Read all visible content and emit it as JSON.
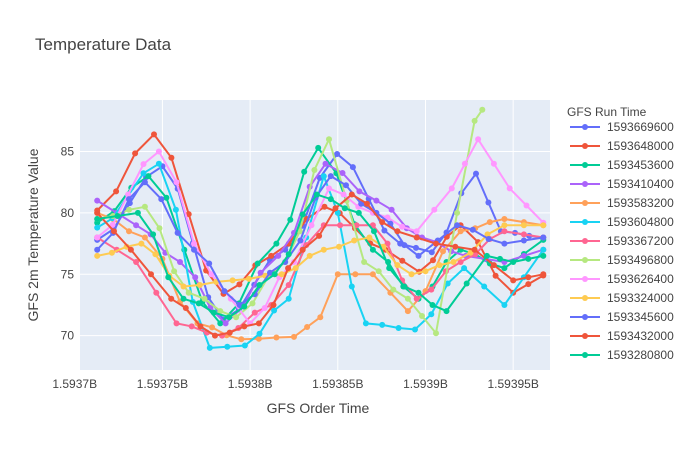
{
  "chart_data": {
    "type": "line",
    "title": "Temperature Data",
    "xlabel": "GFS Order Time",
    "ylabel": "GFS 2m Temperature Value",
    "legend_title": "GFS Run Time",
    "legend_placement": "right",
    "grid": true,
    "xlim": [
      1593703000,
      1593971000
    ],
    "ylim": [
      67.2,
      89.2
    ],
    "x_ticks": [
      1593700000,
      1593750000,
      1593800000,
      1593850000,
      1593900000,
      1593950000
    ],
    "x_tick_labels": [
      "1.5937B",
      "1.59375B",
      "1.5938B",
      "1.59385B",
      "1.5939B",
      "1.59395B"
    ],
    "y_ticks": [
      70,
      75,
      80,
      85
    ],
    "y_tick_labels": [
      "70",
      "75",
      "80",
      "85"
    ],
    "colors": {
      "plot_bg": "#e5ecf6",
      "grid": "#ffffff",
      "text": "#444444"
    },
    "series": [
      {
        "name": "1593669600",
        "color": "#636efa",
        "anchors": [
          [
            1593712800,
            77.8
          ],
          [
            1593750000,
            83.8
          ],
          [
            1593784800,
            71.3
          ],
          [
            1593820000,
            77.0
          ],
          [
            1593849600,
            84.8
          ],
          [
            1593885600,
            77.5
          ],
          [
            1593903600,
            76.8
          ],
          [
            1593928800,
            83.2
          ],
          [
            1593943000,
            78.5
          ],
          [
            1593967200,
            78.0
          ]
        ]
      },
      {
        "name": "1593648000",
        "color": "#EF553B",
        "anchors": [
          [
            1593712800,
            80.2
          ],
          [
            1593745200,
            86.4
          ],
          [
            1593784800,
            73.4
          ],
          [
            1593812000,
            76.5
          ],
          [
            1593842400,
            80.5
          ],
          [
            1593877200,
            77.0
          ],
          [
            1593896400,
            75.2
          ],
          [
            1593920000,
            79.0
          ],
          [
            1593950000,
            73.5
          ],
          [
            1593967200,
            74.9
          ]
        ]
      },
      {
        "name": "1593453600",
        "color": "#00cc96",
        "anchors": [
          [
            1593712800,
            79.2
          ],
          [
            1593742000,
            83.0
          ],
          [
            1593783000,
            71.0
          ],
          [
            1593815000,
            77.5
          ],
          [
            1593838800,
            85.3
          ],
          [
            1593870000,
            77.0
          ],
          [
            1593896000,
            73.0
          ],
          [
            1593920000,
            77.0
          ],
          [
            1593945000,
            75.5
          ],
          [
            1593967200,
            77.8
          ]
        ]
      },
      {
        "name": "1593410400",
        "color": "#ab63fa",
        "anchors": [
          [
            1593712800,
            81.0
          ],
          [
            1593735000,
            79.0
          ],
          [
            1593760000,
            76.0
          ],
          [
            1593786000,
            71.0
          ],
          [
            1593816000,
            76.5
          ],
          [
            1593843000,
            84.0
          ],
          [
            1593872000,
            81.0
          ],
          [
            1593898000,
            78.0
          ],
          [
            1593923000,
            76.5
          ],
          [
            1593945000,
            76.0
          ],
          [
            1593967200,
            77.0
          ]
        ]
      },
      {
        "name": "1593583200",
        "color": "#FFA15A",
        "anchors": [
          [
            1593712800,
            80.0
          ],
          [
            1593740000,
            78.0
          ],
          [
            1593770000,
            71.0
          ],
          [
            1593795000,
            69.7
          ],
          [
            1593825000,
            69.9
          ],
          [
            1593840000,
            71.5
          ],
          [
            1593850000,
            75.0
          ],
          [
            1593870000,
            75.0
          ],
          [
            1593890000,
            72.0
          ],
          [
            1593920000,
            78.5
          ],
          [
            1593945000,
            79.5
          ],
          [
            1593967200,
            79.0
          ]
        ]
      },
      {
        "name": "1593604800",
        "color": "#19d3f3",
        "anchors": [
          [
            1593712800,
            78.8
          ],
          [
            1593748000,
            84.0
          ],
          [
            1593777000,
            69.0
          ],
          [
            1593797000,
            69.2
          ],
          [
            1593822000,
            73.0
          ],
          [
            1593842000,
            83.0
          ],
          [
            1593866000,
            71.0
          ],
          [
            1593894000,
            70.5
          ],
          [
            1593922000,
            75.5
          ],
          [
            1593945000,
            72.5
          ],
          [
            1593967200,
            77.0
          ]
        ]
      },
      {
        "name": "1593367200",
        "color": "#FF6692",
        "anchors": [
          [
            1593712800,
            78.0
          ],
          [
            1593735000,
            76.0
          ],
          [
            1593758000,
            71.0
          ],
          [
            1593784000,
            70.0
          ],
          [
            1593812000,
            72.5
          ],
          [
            1593842000,
            79.0
          ],
          [
            1593870000,
            79.0
          ],
          [
            1593895000,
            73.0
          ],
          [
            1593920000,
            76.0
          ],
          [
            1593945000,
            78.5
          ],
          [
            1593967200,
            78.0
          ]
        ]
      },
      {
        "name": "1593496800",
        "color": "#B6E880",
        "anchors": [
          [
            1593712800,
            79.5
          ],
          [
            1593740000,
            80.5
          ],
          [
            1593765000,
            73.5
          ],
          [
            1593792000,
            71.5
          ],
          [
            1593820000,
            76.0
          ],
          [
            1593845000,
            86.0
          ],
          [
            1593865000,
            76.0
          ],
          [
            1593890000,
            73.0
          ],
          [
            1593906000,
            70.2
          ],
          [
            1593918000,
            80.0
          ],
          [
            1593928000,
            87.5
          ],
          [
            1593932400,
            88.4
          ]
        ]
      },
      {
        "name": "1593626400",
        "color": "#FF97FF",
        "anchors": [
          [
            1593712800,
            78.0
          ],
          [
            1593748000,
            85.0
          ],
          [
            1593778000,
            75.0
          ],
          [
            1593800000,
            71.0
          ],
          [
            1593825000,
            76.0
          ],
          [
            1593845000,
            82.0
          ],
          [
            1593870000,
            80.0
          ],
          [
            1593895000,
            78.5
          ],
          [
            1593915000,
            82.0
          ],
          [
            1593930000,
            86.0
          ],
          [
            1593948000,
            82.0
          ],
          [
            1593967200,
            79.2
          ]
        ]
      },
      {
        "name": "1593324000",
        "color": "#FECB52",
        "anchors": [
          [
            1593712800,
            76.5
          ],
          [
            1593738000,
            77.5
          ],
          [
            1593762000,
            74.0
          ],
          [
            1593790000,
            74.5
          ],
          [
            1593818000,
            75.0
          ],
          [
            1593842000,
            77.0
          ],
          [
            1593868000,
            78.0
          ],
          [
            1593892000,
            75.0
          ],
          [
            1593916000,
            76.0
          ],
          [
            1593945000,
            79.0
          ],
          [
            1593967200,
            79.0
          ]
        ]
      },
      {
        "name": "1593345600",
        "color": "#636efa",
        "anchors": [
          [
            1593712800,
            77.0
          ],
          [
            1593740000,
            82.5
          ],
          [
            1593768000,
            77.0
          ],
          [
            1593794000,
            72.5
          ],
          [
            1593820000,
            76.0
          ],
          [
            1593846000,
            83.0
          ],
          [
            1593872000,
            80.0
          ],
          [
            1593896000,
            76.5
          ],
          [
            1593918000,
            79.0
          ],
          [
            1593945000,
            77.5
          ],
          [
            1593967200,
            78.0
          ]
        ]
      },
      {
        "name": "1593432000",
        "color": "#EF553B",
        "anchors": [
          [
            1593712800,
            80.0
          ],
          [
            1593732000,
            77.0
          ],
          [
            1593755000,
            73.0
          ],
          [
            1593780000,
            70.0
          ],
          [
            1593805000,
            71.0
          ],
          [
            1593830000,
            77.0
          ],
          [
            1593858000,
            81.5
          ],
          [
            1593884000,
            78.5
          ],
          [
            1593906000,
            77.5
          ],
          [
            1593928000,
            77.0
          ],
          [
            1593950000,
            74.5
          ],
          [
            1593967200,
            75.0
          ]
        ]
      },
      {
        "name": "1593280800",
        "color": "#00cc96",
        "anchors": [
          [
            1593712800,
            79.5
          ],
          [
            1593736000,
            80.0
          ],
          [
            1593762000,
            73.0
          ],
          [
            1593788000,
            71.5
          ],
          [
            1593814000,
            75.0
          ],
          [
            1593838000,
            81.5
          ],
          [
            1593862000,
            80.0
          ],
          [
            1593888000,
            74.0
          ],
          [
            1593912000,
            72.0
          ],
          [
            1593935000,
            76.5
          ],
          [
            1593950000,
            76.0
          ],
          [
            1593967200,
            76.5
          ]
        ]
      }
    ]
  }
}
